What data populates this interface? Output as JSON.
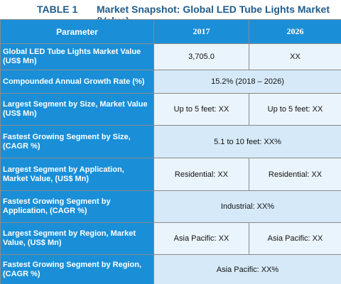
{
  "title": {
    "number": "TABLE 1",
    "text": "Market Snapshot: Global LED Tube Lights Market (Value)"
  },
  "header": {
    "parameter": "Parameter",
    "col1": "2017",
    "col2": "2026"
  },
  "rows": [
    {
      "label": "Global LED Tube Lights Market Value (US$ Mn)",
      "v2017": "3,705.0",
      "v2026": "XX"
    },
    {
      "label": "Compounded Annual Growth Rate (%)",
      "merged": "15.2% (2018 – 2026)"
    },
    {
      "label": "Largest Segment by Size, Market Value (US$ Mn)",
      "v2017": "Up to 5 feet: XX",
      "v2026": "Up to 5 feet:  XX"
    },
    {
      "label": "Fastest Growing Segment by Size, (CAGR %)",
      "merged": "5.1 to 10 feet:  XX%"
    },
    {
      "label": "Largest Segment by Application, Market Value, (US$ Mn)",
      "v2017": "Residential:  XX",
      "v2026": "Residential:  XX"
    },
    {
      "label": "Fastest Growing Segment by Application, (CAGR %)",
      "merged": "Industrial: XX%"
    },
    {
      "label": "Largest Segment by Region, Market Value, (US$ Mn)",
      "v2017": "Asia Pacific:  XX",
      "v2026": "Asia Pacific:  XX"
    },
    {
      "label": "Fastest Growing Segment by Region, (CAGR %)",
      "merged": "Asia Pacific: XX%"
    }
  ]
}
